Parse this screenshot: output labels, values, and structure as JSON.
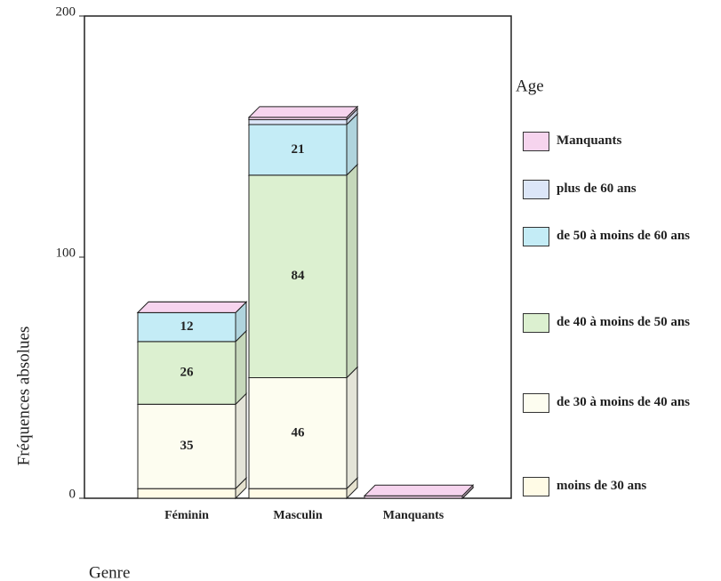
{
  "chart_data": {
    "type": "bar3d_stacked",
    "y_label": "Fréquences absolues",
    "x_label": "Genre",
    "legend_title": "Age",
    "categories": [
      "Féminin",
      "Masculin",
      "Manquants"
    ],
    "ylim": [
      0,
      200
    ],
    "yticks": [
      0,
      100,
      200
    ],
    "series": [
      {
        "name": "moins de 30 ans",
        "color": "#fffbe6",
        "values": [
          4,
          4,
          0
        ],
        "value_labels": [
          null,
          null,
          null
        ]
      },
      {
        "name": "de 30 à moins de 40 ans",
        "color": "#fdfdf0",
        "values": [
          35,
          46,
          0
        ],
        "value_labels": [
          "35",
          "46",
          null
        ]
      },
      {
        "name": "de 40 à moins de 50 ans",
        "color": "#dcf0d0",
        "values": [
          26,
          84,
          0
        ],
        "value_labels": [
          "26",
          "84",
          null
        ]
      },
      {
        "name": "de 50 à moins de 60 ans",
        "color": "#c4ecf6",
        "values": [
          12,
          21,
          0
        ],
        "value_labels": [
          "12",
          "21",
          null
        ]
      },
      {
        "name": "plus de 60 ans",
        "color": "#dce6f8",
        "values": [
          0,
          2,
          0
        ],
        "value_labels": [
          null,
          null,
          null
        ]
      },
      {
        "name": "Manquants",
        "color": "#f6d4ee",
        "values": [
          0,
          1,
          1
        ],
        "value_labels": [
          null,
          null,
          null
        ]
      }
    ]
  }
}
